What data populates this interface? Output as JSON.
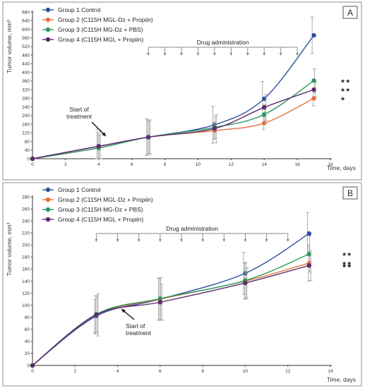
{
  "figure": {
    "xlabel": "Time, days",
    "ylabel": "Tumor volume, mm³",
    "start_label_line1": "Start of",
    "start_label_line2": "treatment",
    "drug_label": "Drug administration"
  },
  "colors": {
    "Group 1 Control": "#2f4f9e",
    "Group 2 (C115H MGL-Dz + Propiin)": "#e8703a",
    "Group 3 (C115H MG-Dz + PBS)": "#2a9a5a",
    "Group 4 (C115H MGL + Propiin)": "#5e2a6e"
  },
  "chart_data": [
    {
      "panel": "A",
      "type": "line",
      "xlabel": "Time, days",
      "ylabel": "Tumor volume, mm³",
      "xlim": [
        0,
        18
      ],
      "ylim": [
        0,
        680
      ],
      "xticks": [
        0,
        2,
        4,
        6,
        8,
        10,
        12,
        14,
        16,
        18
      ],
      "yticks": [
        0,
        40,
        80,
        120,
        160,
        200,
        240,
        280,
        320,
        360,
        400,
        440,
        480,
        520,
        560,
        600,
        640,
        680
      ],
      "legend_position": "top-left",
      "series": [
        {
          "name": "Group 1 Control",
          "x": [
            0,
            4,
            7,
            11,
            14,
            17
          ],
          "y": [
            0,
            58,
            100,
            157,
            278,
            572
          ],
          "err": [
            0,
            80,
            85,
            85,
            80,
            85
          ]
        },
        {
          "name": "Group 2 (C115H MGL-Dz + Propiin)",
          "x": [
            0,
            4,
            7,
            11,
            14,
            17
          ],
          "y": [
            0,
            50,
            100,
            130,
            165,
            280
          ],
          "err": [
            0,
            70,
            80,
            40,
            30,
            35
          ]
        },
        {
          "name": "Group 3 (C115H MG-Dz + PBS)",
          "x": [
            0,
            4,
            7,
            11,
            14,
            17
          ],
          "y": [
            0,
            50,
            100,
            145,
            205,
            362
          ],
          "err": [
            0,
            60,
            75,
            50,
            45,
            55
          ]
        },
        {
          "name": "Group 4 (C115H MGL + Propiin)",
          "x": [
            0,
            4,
            7,
            11,
            14,
            17
          ],
          "y": [
            0,
            58,
            100,
            140,
            238,
            320
          ],
          "err": [
            0,
            70,
            80,
            65,
            60,
            35
          ]
        }
      ],
      "significance": [
        "★★",
        "★★",
        "★"
      ],
      "start_of_treatment_day": 7,
      "drug_days": [
        7,
        8,
        9,
        10,
        11,
        12,
        13,
        14,
        15,
        16
      ]
    },
    {
      "panel": "B",
      "type": "line",
      "xlabel": "Time, days",
      "ylabel": "Tumor volume, mm³",
      "xlim": [
        0,
        14
      ],
      "ylim": [
        0,
        280
      ],
      "xticks": [
        0,
        2,
        4,
        6,
        8,
        10,
        12,
        14
      ],
      "yticks": [
        0,
        20,
        40,
        60,
        80,
        100,
        120,
        140,
        160,
        180,
        200,
        220,
        240,
        260,
        280
      ],
      "legend_position": "top-left",
      "series": [
        {
          "name": "Group 1 Control",
          "x": [
            0,
            3,
            6,
            10,
            13
          ],
          "y": [
            0,
            82,
            110,
            153,
            219
          ],
          "err": [
            0,
            28,
            35,
            35,
            35
          ]
        },
        {
          "name": "Group 2 (C115H MGL-Dz + Propiin)",
          "x": [
            0,
            3,
            6,
            10,
            13
          ],
          "y": [
            0,
            84,
            110,
            140,
            170
          ],
          "err": [
            0,
            32,
            35,
            30,
            30
          ]
        },
        {
          "name": "Group 3 (C115H MG-Dz + PBS)",
          "x": [
            0,
            3,
            6,
            10,
            13
          ],
          "y": [
            0,
            85,
            111,
            141,
            185
          ],
          "err": [
            0,
            30,
            35,
            30,
            30
          ]
        },
        {
          "name": "Group 4 (C115H MGL + Propiin)",
          "x": [
            0,
            3,
            6,
            10,
            13
          ],
          "y": [
            0,
            84,
            105,
            137,
            166
          ],
          "err": [
            0,
            35,
            30,
            25,
            25
          ]
        }
      ],
      "significance": [
        "★★",
        "★★",
        "★★"
      ],
      "start_of_treatment_day": 3,
      "drug_days": [
        3,
        4,
        5,
        6,
        7,
        8,
        9,
        10,
        11,
        12
      ]
    }
  ]
}
